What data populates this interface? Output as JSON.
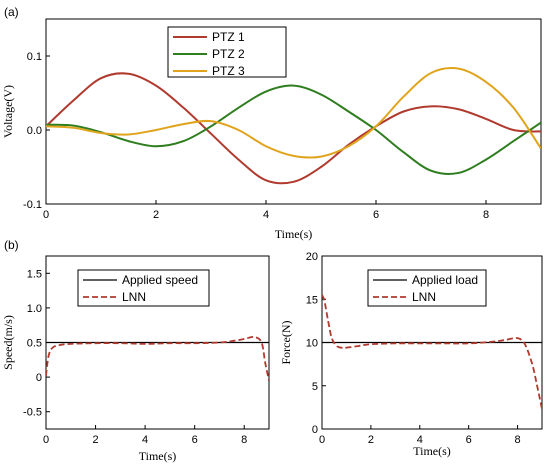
{
  "chart_data": [
    {
      "type": "line",
      "panel_label": "(a)",
      "xlabel": "Time(s)",
      "ylabel": "Voltage(V)",
      "xlim": [
        0,
        9
      ],
      "ylim": [
        -0.1,
        0.15
      ],
      "xticks": [
        "0",
        "2",
        "4",
        "6",
        "8"
      ],
      "yticks": [
        "-0.1",
        "0.0",
        "0.1"
      ],
      "legend_position": "top-center",
      "grid": false,
      "series": [
        {
          "name": "PTZ 1",
          "color": "#b03a2e",
          "x": [
            0,
            0.5,
            1,
            1.5,
            2,
            2.5,
            3,
            3.5,
            4,
            4.5,
            5,
            5.5,
            6,
            6.5,
            7,
            7.5,
            8,
            8.5,
            9
          ],
          "y": [
            0.005,
            0.04,
            0.07,
            0.076,
            0.06,
            0.03,
            -0.005,
            -0.04,
            -0.068,
            -0.07,
            -0.05,
            -0.02,
            0.005,
            0.025,
            0.032,
            0.028,
            0.015,
            0.0,
            -0.002
          ]
        },
        {
          "name": "PTZ 2",
          "color": "#2e7d1e",
          "x": [
            0,
            0.5,
            1,
            1.5,
            2,
            2.5,
            3,
            3.5,
            4,
            4.5,
            5,
            5.5,
            6,
            6.5,
            7,
            7.5,
            8,
            8.5,
            9
          ],
          "y": [
            0.007,
            0.006,
            -0.003,
            -0.015,
            -0.022,
            -0.015,
            0.005,
            0.03,
            0.052,
            0.06,
            0.048,
            0.025,
            0.0,
            -0.03,
            -0.055,
            -0.058,
            -0.04,
            -0.015,
            0.01
          ]
        },
        {
          "name": "PTZ 3",
          "color": "#e0a41c",
          "x": [
            0,
            0.5,
            1,
            1.5,
            2,
            2.5,
            3,
            3.5,
            4,
            4.5,
            5,
            5.5,
            6,
            6.5,
            7,
            7.5,
            8,
            8.5,
            9
          ],
          "y": [
            0.005,
            0.003,
            -0.004,
            -0.006,
            0.0,
            0.008,
            0.012,
            0.0,
            -0.022,
            -0.035,
            -0.036,
            -0.022,
            0.005,
            0.045,
            0.077,
            0.083,
            0.065,
            0.03,
            -0.025
          ]
        }
      ]
    },
    {
      "type": "line",
      "panel_label": "(b)",
      "xlabel": "Time(s)",
      "ylabel": "Speed(m/s)",
      "xlim": [
        0,
        9
      ],
      "ylim": [
        -0.75,
        1.75
      ],
      "xticks": [
        "0",
        "2",
        "4",
        "6",
        "8"
      ],
      "yticks": [
        "-0.5",
        "0",
        "0.5",
        "1.0",
        "1.5"
      ],
      "legend_position": "top-center",
      "grid": false,
      "series": [
        {
          "name": "Applied speed",
          "color": "#000000",
          "style": "solid",
          "x": [
            0,
            9
          ],
          "y": [
            0.5,
            0.5
          ]
        },
        {
          "name": "LNN",
          "color": "#b03a2e",
          "style": "dashed",
          "x": [
            0,
            0.1,
            0.25,
            0.5,
            1,
            2,
            3,
            4,
            5,
            6,
            7,
            7.5,
            8,
            8.4,
            8.7,
            8.85,
            9
          ],
          "y": [
            0.02,
            0.3,
            0.42,
            0.46,
            0.48,
            0.49,
            0.49,
            0.48,
            0.49,
            0.49,
            0.5,
            0.52,
            0.55,
            0.58,
            0.5,
            0.2,
            -0.05
          ]
        }
      ]
    },
    {
      "type": "line",
      "xlabel": "Time(s)",
      "ylabel": "Force(N)",
      "xlim": [
        0,
        9
      ],
      "ylim": [
        0,
        20
      ],
      "xticks": [
        "0",
        "2",
        "4",
        "6",
        "8"
      ],
      "yticks": [
        "0",
        "5",
        "10",
        "15",
        "20"
      ],
      "legend_position": "top-center",
      "grid": false,
      "series": [
        {
          "name": "Applied load",
          "color": "#000000",
          "style": "solid",
          "x": [
            0,
            9
          ],
          "y": [
            10,
            10
          ]
        },
        {
          "name": "LNN",
          "color": "#b03a2e",
          "style": "dashed",
          "x": [
            0,
            0.1,
            0.25,
            0.4,
            0.6,
            0.8,
            1,
            1.5,
            2,
            3,
            4,
            5,
            6,
            7,
            7.5,
            8,
            8.3,
            8.6,
            8.8,
            9
          ],
          "y": [
            15.5,
            14.8,
            12.5,
            10.5,
            9.6,
            9.4,
            9.4,
            9.6,
            9.8,
            9.9,
            9.9,
            9.9,
            9.9,
            10.1,
            10.3,
            10.5,
            9.8,
            7.5,
            5.0,
            2.3
          ]
        }
      ]
    }
  ]
}
